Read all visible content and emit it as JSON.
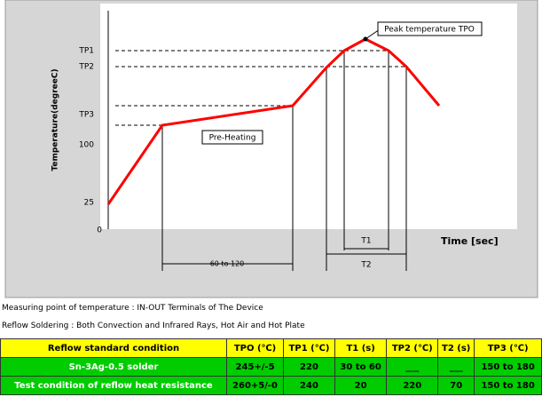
{
  "diagram": {
    "y_axis_title": "Temperature(degreeC)",
    "y_labels": [
      "TP1",
      "TP2",
      "TP3",
      "100",
      "25",
      "0"
    ],
    "x_axis_title": "Time [sec]",
    "peak_label": "Peak temperature TPO",
    "preheat_label": "Pre-Heating",
    "preheat_span": "60 to 120",
    "t1": "T1",
    "t2": "T2"
  },
  "notes": [
    "Measuring point of temperature : IN-OUT Terminals of The Device",
    "Reflow Soldering : Both Convection and Infrared Rays, Hot Air and Hot Plate"
  ],
  "table": {
    "header": [
      "Reflow standard condition",
      "TPO (℃)",
      "TP1 (℃)",
      "T1 (s)",
      "TP2 (℃)",
      "T2 (s)",
      "TP3 (℃)"
    ],
    "rows": [
      [
        "Sn-3Ag-0.5 solder",
        "245+/-5",
        "220",
        "30 to 60",
        "___",
        "___",
        "150 to 180"
      ],
      [
        "Test condition of reflow heat resistance",
        "260+5/-0",
        "240",
        "20",
        "220",
        "70",
        "150 to 180"
      ]
    ]
  }
}
